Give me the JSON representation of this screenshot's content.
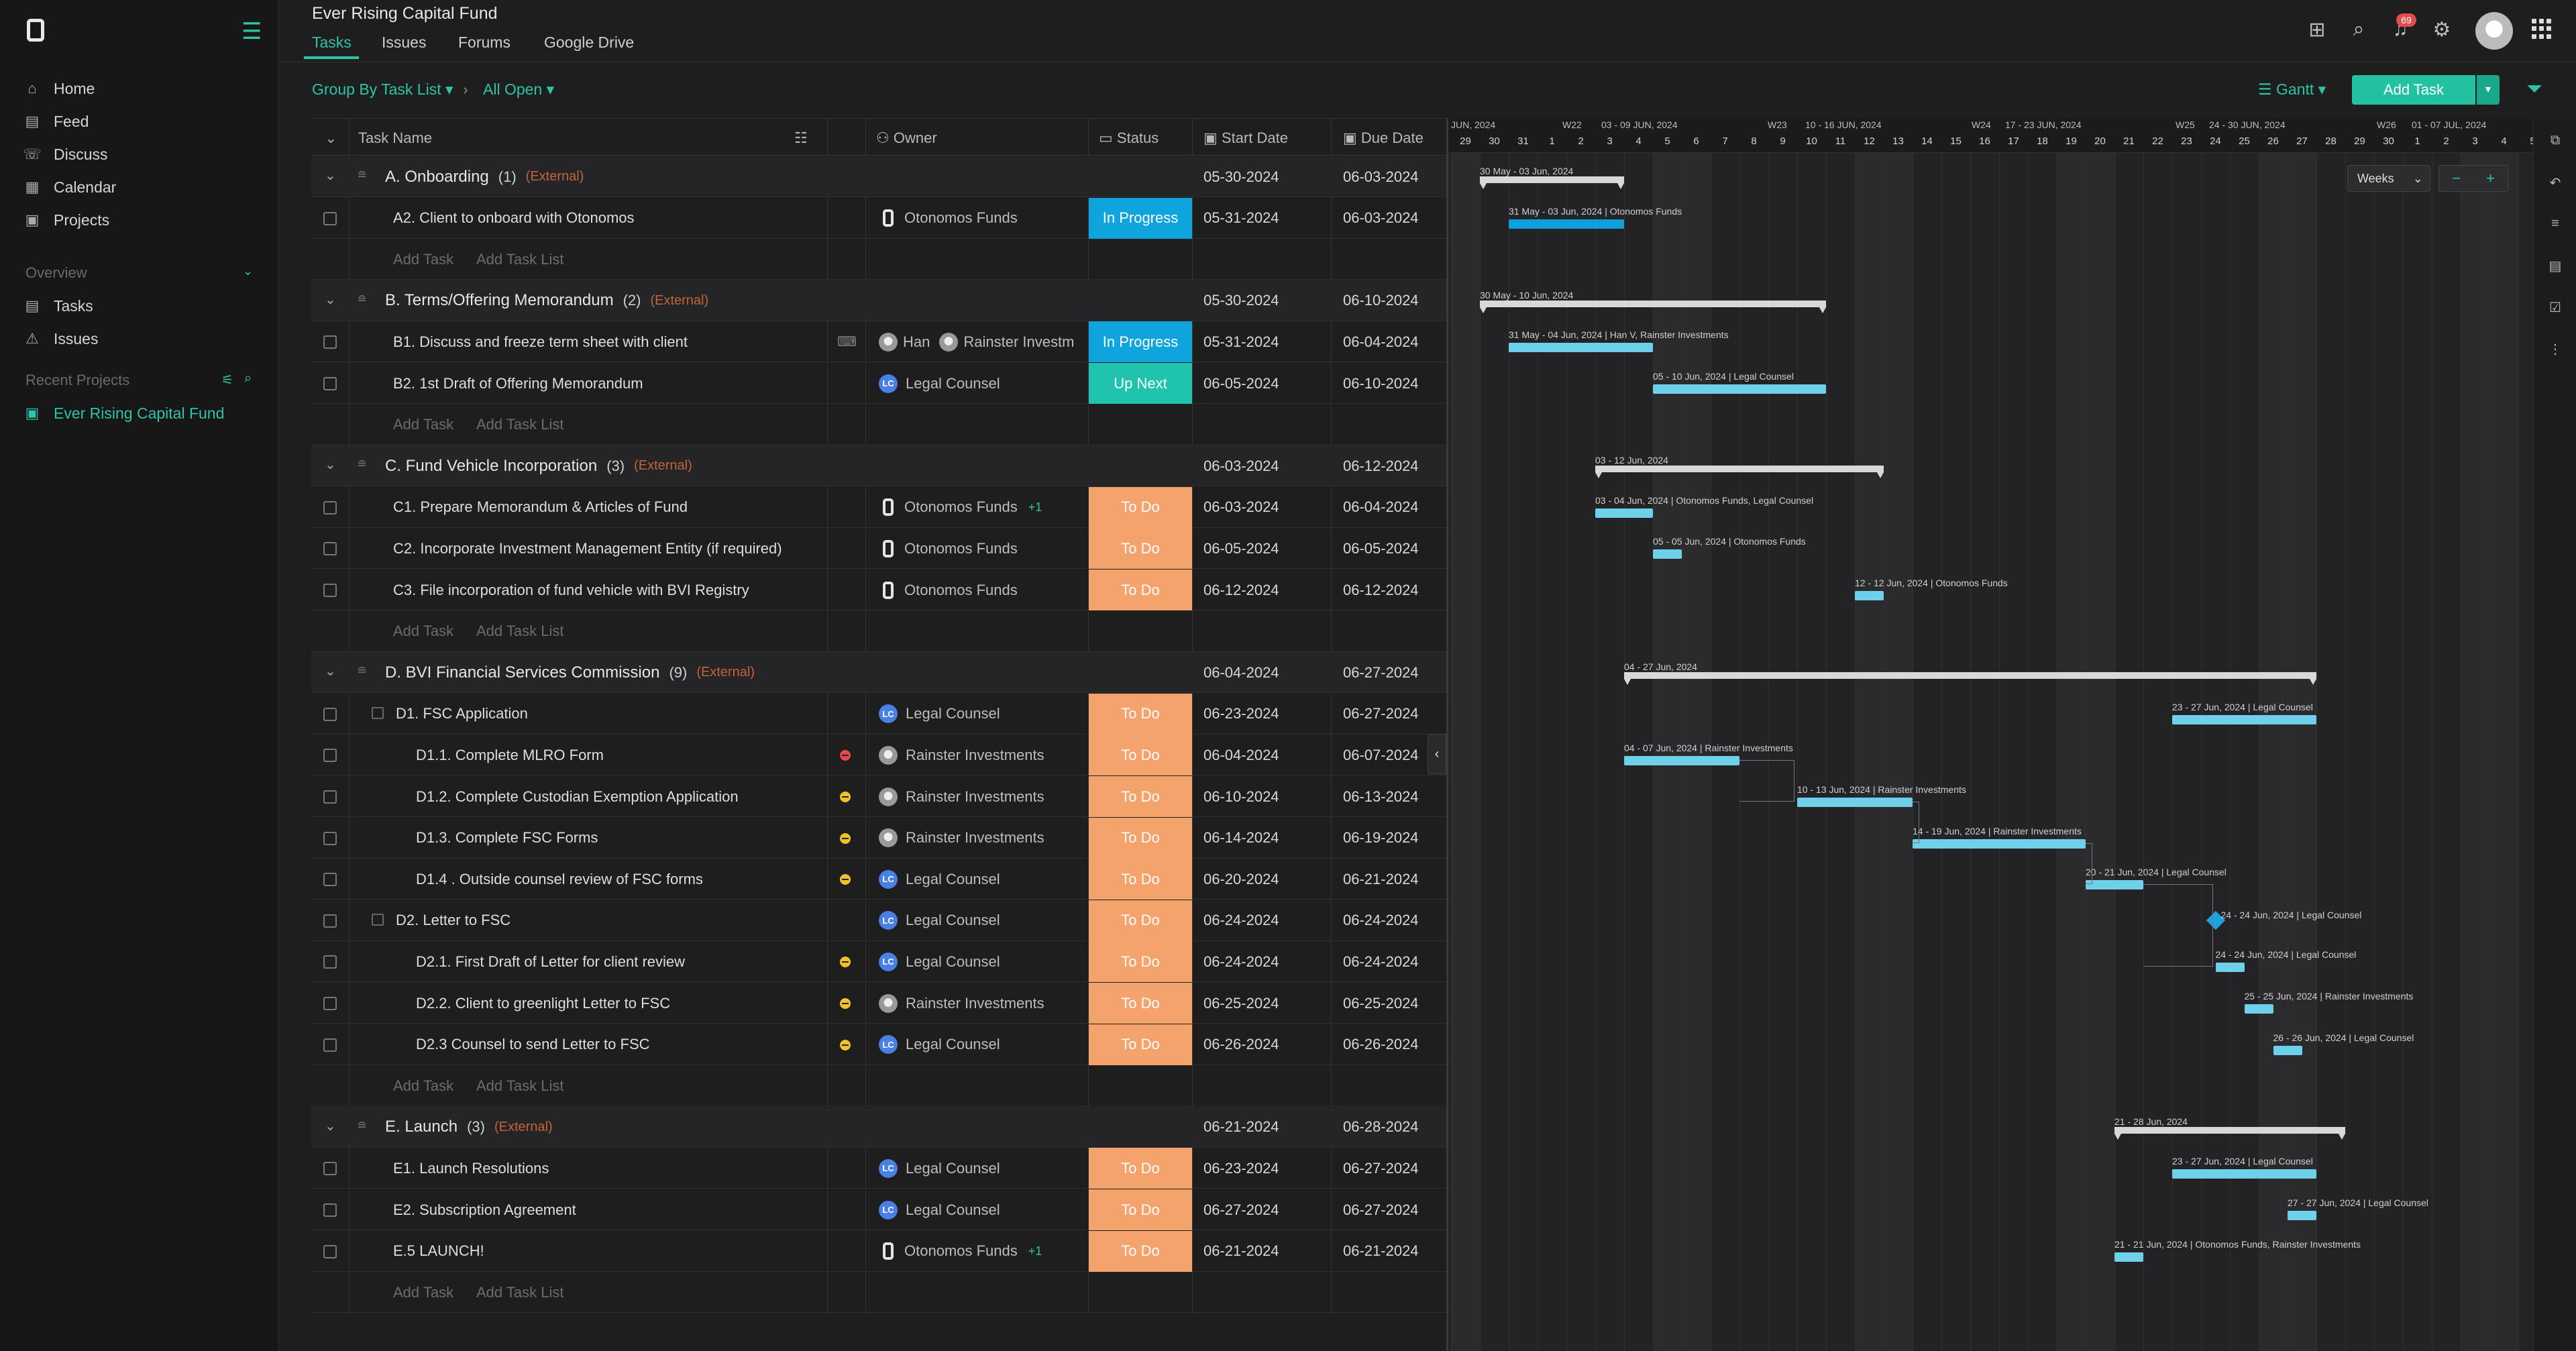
{
  "sidebar": {
    "nav": [
      {
        "label": "Home",
        "icon": "home-icon"
      },
      {
        "label": "Feed",
        "icon": "feed-icon"
      },
      {
        "label": "Discuss",
        "icon": "discuss-icon"
      },
      {
        "label": "Calendar",
        "icon": "calendar-icon"
      },
      {
        "label": "Projects",
        "icon": "projects-icon"
      }
    ],
    "overview_label": "Overview",
    "overview_items": [
      {
        "label": "Tasks",
        "icon": "tasks-icon"
      },
      {
        "label": "Issues",
        "icon": "issues-icon"
      }
    ],
    "recent_label": "Recent Projects",
    "recent_items": [
      {
        "label": "Ever Rising Capital Fund",
        "icon": "project-icon"
      }
    ]
  },
  "header": {
    "project_title": "Ever Rising Capital Fund",
    "tabs": [
      "Tasks",
      "Issues",
      "Forums",
      "Google Drive"
    ],
    "notification_count": "69"
  },
  "toolbar": {
    "group_by": "Group By Task List",
    "filter": "All Open",
    "view": "Gantt",
    "add_task": "Add Task"
  },
  "table": {
    "columns": [
      "Task Name",
      "Owner",
      "Status",
      "Start Date",
      "Due Date"
    ],
    "add_task": "Add Task",
    "add_task_list": "Add Task List",
    "groups": [
      {
        "title": "A. Onboarding",
        "count": "(1)",
        "ext": "(External)",
        "start": "05-30-2024",
        "due": "06-03-2024",
        "tasks": [
          {
            "name": "A2. Client to onboard with Otonomos",
            "owner": "Otonomos Funds",
            "owner_type": "o",
            "status": "In Progress",
            "start": "05-31-2024",
            "due": "06-03-2024"
          }
        ]
      },
      {
        "title": "B. Terms/Offering Memorandum",
        "count": "(2)",
        "ext": "(External)",
        "start": "05-30-2024",
        "due": "06-10-2024",
        "tasks": [
          {
            "name": "B1. Discuss and freeze term sheet with client",
            "owner": "Han",
            "owner2": "Rainster Investm",
            "owner_type": "multi",
            "status": "In Progress",
            "start": "05-31-2024",
            "due": "06-04-2024"
          },
          {
            "name": "B2. 1st Draft of Offering Memorandum",
            "owner": "Legal Counsel",
            "owner_type": "lc",
            "status": "Up Next",
            "start": "06-05-2024",
            "due": "06-10-2024"
          }
        ]
      },
      {
        "title": "C. Fund Vehicle Incorporation",
        "count": "(3)",
        "ext": "(External)",
        "start": "06-03-2024",
        "due": "06-12-2024",
        "tasks": [
          {
            "name": "C1. Prepare Memorandum & Articles of Fund",
            "owner": "Otonomos Funds",
            "owner_type": "o",
            "extra": "+1",
            "status": "To Do",
            "start": "06-03-2024",
            "due": "06-04-2024"
          },
          {
            "name": "C2. Incorporate Investment Management Entity (if required)",
            "owner": "Otonomos Funds",
            "owner_type": "o",
            "status": "To Do",
            "start": "06-05-2024",
            "due": "06-05-2024"
          },
          {
            "name": "C3. File incorporation of fund vehicle with BVI Registry",
            "owner": "Otonomos Funds",
            "owner_type": "o",
            "status": "To Do",
            "start": "06-12-2024",
            "due": "06-12-2024"
          }
        ]
      },
      {
        "title": "D. BVI Financial Services Commission",
        "count": "(9)",
        "ext": "(External)",
        "start": "06-04-2024",
        "due": "06-27-2024",
        "tasks": [
          {
            "name": "D1. FSC Application",
            "level": 1,
            "owner": "Legal Counsel",
            "owner_type": "lc",
            "status": "To Do",
            "start": "06-23-2024",
            "due": "06-27-2024"
          },
          {
            "name": "D1.1. Complete MLRO Form",
            "level": 2,
            "prio": "high",
            "owner": "Rainster Investments",
            "owner_type": "ri",
            "status": "To Do",
            "start": "06-04-2024",
            "due": "06-07-2024"
          },
          {
            "name": "D1.2. Complete Custodian Exemption Application",
            "level": 2,
            "prio": "med",
            "owner": "Rainster Investments",
            "owner_type": "ri",
            "status": "To Do",
            "start": "06-10-2024",
            "due": "06-13-2024"
          },
          {
            "name": "D1.3. Complete FSC Forms",
            "level": 2,
            "prio": "med",
            "owner": "Rainster Investments",
            "owner_type": "ri",
            "status": "To Do",
            "start": "06-14-2024",
            "due": "06-19-2024"
          },
          {
            "name": "D1.4 . Outside counsel review of FSC forms",
            "level": 2,
            "prio": "med",
            "owner": "Legal Counsel",
            "owner_type": "lc",
            "status": "To Do",
            "start": "06-20-2024",
            "due": "06-21-2024"
          },
          {
            "name": "D2. Letter to FSC",
            "level": 1,
            "owner": "Legal Counsel",
            "owner_type": "lc",
            "status": "To Do",
            "start": "06-24-2024",
            "due": "06-24-2024"
          },
          {
            "name": "D2.1. First Draft of Letter for client review",
            "level": 2,
            "prio": "med",
            "owner": "Legal Counsel",
            "owner_type": "lc",
            "status": "To Do",
            "start": "06-24-2024",
            "due": "06-24-2024"
          },
          {
            "name": "D2.2. Client to greenlight Letter to FSC",
            "level": 2,
            "prio": "med",
            "owner": "Rainster Investments",
            "owner_type": "ri",
            "status": "To Do",
            "start": "06-25-2024",
            "due": "06-25-2024"
          },
          {
            "name": "D2.3 Counsel to send Letter to FSC",
            "level": 2,
            "prio": "med",
            "owner": "Legal Counsel",
            "owner_type": "lc",
            "status": "To Do",
            "start": "06-26-2024",
            "due": "06-26-2024"
          }
        ]
      },
      {
        "title": "E. Launch",
        "count": "(3)",
        "ext": "(External)",
        "start": "06-21-2024",
        "due": "06-28-2024",
        "tasks": [
          {
            "name": "E1. Launch Resolutions",
            "owner": "Legal Counsel",
            "owner_type": "lc",
            "status": "To Do",
            "start": "06-23-2024",
            "due": "06-27-2024"
          },
          {
            "name": "E2. Subscription Agreement",
            "owner": "Legal Counsel",
            "owner_type": "lc",
            "status": "To Do",
            "start": "06-27-2024",
            "due": "06-27-2024"
          },
          {
            "name": "E.5 LAUNCH!",
            "owner": "Otonomos Funds",
            "owner_type": "o",
            "extra": "+1",
            "status": "To Do",
            "start": "06-21-2024",
            "due": "06-21-2024"
          }
        ]
      }
    ]
  },
  "gantt": {
    "week_labels": [
      "JUN, 2024",
      "W22",
      "03 - 09 JUN, 2024",
      "W23",
      "10 - 16 JUN, 2024",
      "W24",
      "17 - 23 JUN, 2024",
      "W25",
      "24 - 30 JUN, 2024",
      "W26",
      "01 - 07 JUL, 2024"
    ],
    "days": [
      "29",
      "30",
      "31",
      "1",
      "2",
      "3",
      "4",
      "5",
      "6",
      "7",
      "8",
      "9",
      "10",
      "11",
      "12",
      "13",
      "14",
      "15",
      "16",
      "17",
      "18",
      "19",
      "20",
      "21",
      "22",
      "23",
      "24",
      "25",
      "26",
      "27",
      "28",
      "29",
      "30",
      "1",
      "2",
      "3",
      "4",
      "5"
    ],
    "scale": "Weeks",
    "zoom_out": "−",
    "zoom_in": "+",
    "labels": [
      "30 May - 03 Jun, 2024",
      "31 May - 03 Jun, 2024 | Otonomos Funds",
      "30 May - 10 Jun, 2024",
      "31 May - 04 Jun, 2024 | Han V, Rainster Investments",
      "05 - 10 Jun, 2024 | Legal Counsel",
      "03 - 12 Jun, 2024",
      "03 - 04 Jun, 2024 | Otonomos Funds, Legal Counsel",
      "05 - 05 Jun, 2024 | Otonomos Funds",
      "12 - 12 Jun, 2024 | Otonomos Funds",
      "04 - 27 Jun, 2024",
      "23 - 27 Jun, 2024 | Legal Counsel",
      "04 - 07 Jun, 2024 | Rainster Investments",
      "10 - 13 Jun, 2024 | Rainster Investments",
      "14 - 19 Jun, 2024 | Rainster Investments",
      "20 - 21 Jun, 2024 | Legal Counsel",
      "24 - 24 Jun, 2024 | Legal Counsel",
      "24 - 24 Jun, 2024 | Legal Counsel",
      "25 - 25 Jun, 2024 | Rainster Investments",
      "26 - 26 Jun, 2024 | Legal Counsel",
      "21 - 28 Jun, 2024",
      "23 - 27 Jun, 2024 | Legal Counsel",
      "27 - 27 Jun, 2024 | Legal Counsel",
      "21 - 21 Jun, 2024 | Otonomos Funds, Rainster Investments"
    ]
  },
  "colors": {
    "accent": "#2ec4a6",
    "todo": "#f4a36c",
    "in_progress": "#0fa4dc",
    "up_next": "#20c3ad",
    "bar": "#6fd0ea"
  }
}
